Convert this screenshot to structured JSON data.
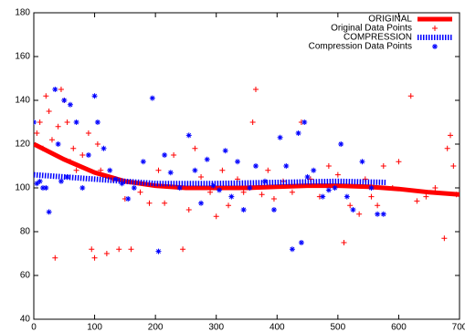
{
  "chart_data": {
    "type": "scatter",
    "xlim": [
      0,
      700
    ],
    "xticks": [
      0,
      100,
      200,
      300,
      400,
      500,
      600,
      700
    ],
    "ylim": [
      40,
      180
    ],
    "yticks": [
      40,
      60,
      80,
      100,
      120,
      140,
      160,
      180
    ],
    "legend": "top-right",
    "series": [
      {
        "name": "ORIGINAL",
        "type": "line",
        "style": "solid",
        "color": "#ff0000",
        "x": [
          0,
          50,
          100,
          150,
          200,
          250,
          300,
          350,
          400,
          450,
          500,
          550,
          600,
          650,
          700
        ],
        "values": [
          120,
          113,
          107,
          103,
          101,
          100,
          100,
          100,
          100.5,
          101,
          101,
          100.5,
          99.5,
          98,
          97
        ]
      },
      {
        "name": "Original Data Points",
        "type": "scatter",
        "marker": "plus",
        "color": "#ff0000",
        "x": [
          5,
          10,
          15,
          20,
          25,
          30,
          35,
          40,
          45,
          50,
          55,
          60,
          65,
          70,
          80,
          90,
          95,
          100,
          105,
          110,
          120,
          130,
          140,
          150,
          160,
          175,
          190,
          205,
          215,
          230,
          245,
          255,
          265,
          275,
          290,
          300,
          310,
          320,
          335,
          345,
          360,
          365,
          375,
          385,
          395,
          410,
          425,
          440,
          455,
          470,
          485,
          500,
          510,
          520,
          535,
          545,
          555,
          565,
          575,
          590,
          600,
          620,
          630,
          645,
          660,
          675,
          680,
          685,
          690,
          695
        ],
        "values": [
          125,
          130,
          118,
          142,
          135,
          122,
          68,
          128,
          145,
          140,
          130,
          112,
          118,
          108,
          115,
          125,
          72,
          68,
          120,
          108,
          70,
          104,
          72,
          95,
          72,
          98,
          93,
          108,
          93,
          115,
          72,
          90,
          118,
          105,
          98,
          87,
          108,
          92,
          104,
          98,
          130,
          145,
          97,
          108,
          95,
          103,
          98,
          130,
          104,
          96,
          110,
          106,
          75,
          92,
          88,
          104,
          96,
          92,
          110,
          100,
          112,
          142,
          94,
          96,
          100,
          77,
          118,
          124,
          110,
          97
        ]
      },
      {
        "name": "COMPRESSION",
        "type": "line",
        "style": "dotted",
        "color": "#0000ff",
        "x": [
          0,
          100,
          200,
          300,
          400,
          500,
          580
        ],
        "values": [
          106,
          104,
          102,
          102,
          102.5,
          103,
          102.5
        ]
      },
      {
        "name": "Compression Data Points",
        "type": "scatter",
        "marker": "star",
        "color": "#0000ff",
        "x": [
          0,
          5,
          10,
          15,
          20,
          25,
          35,
          40,
          45,
          50,
          55,
          60,
          70,
          80,
          90,
          100,
          105,
          115,
          125,
          135,
          145,
          155,
          165,
          180,
          195,
          205,
          215,
          225,
          240,
          255,
          265,
          275,
          285,
          295,
          305,
          315,
          325,
          335,
          345,
          355,
          365,
          380,
          395,
          405,
          415,
          425,
          435,
          440,
          445,
          450,
          460,
          475,
          485,
          495,
          505,
          515,
          525,
          540,
          555,
          565,
          575
        ],
        "values": [
          130,
          102,
          103,
          100,
          100,
          89,
          145,
          120,
          103,
          140,
          105,
          138,
          130,
          100,
          115,
          142,
          130,
          118,
          108,
          104,
          102,
          95,
          100,
          112,
          141,
          71,
          115,
          107,
          100,
          124,
          108,
          93,
          113,
          101,
          99,
          117,
          96,
          112,
          90,
          100,
          110,
          103,
          90,
          123,
          110,
          72,
          125,
          75,
          130,
          105,
          108,
          96,
          99,
          100,
          120,
          96,
          90,
          112,
          100,
          88,
          88
        ]
      }
    ]
  }
}
